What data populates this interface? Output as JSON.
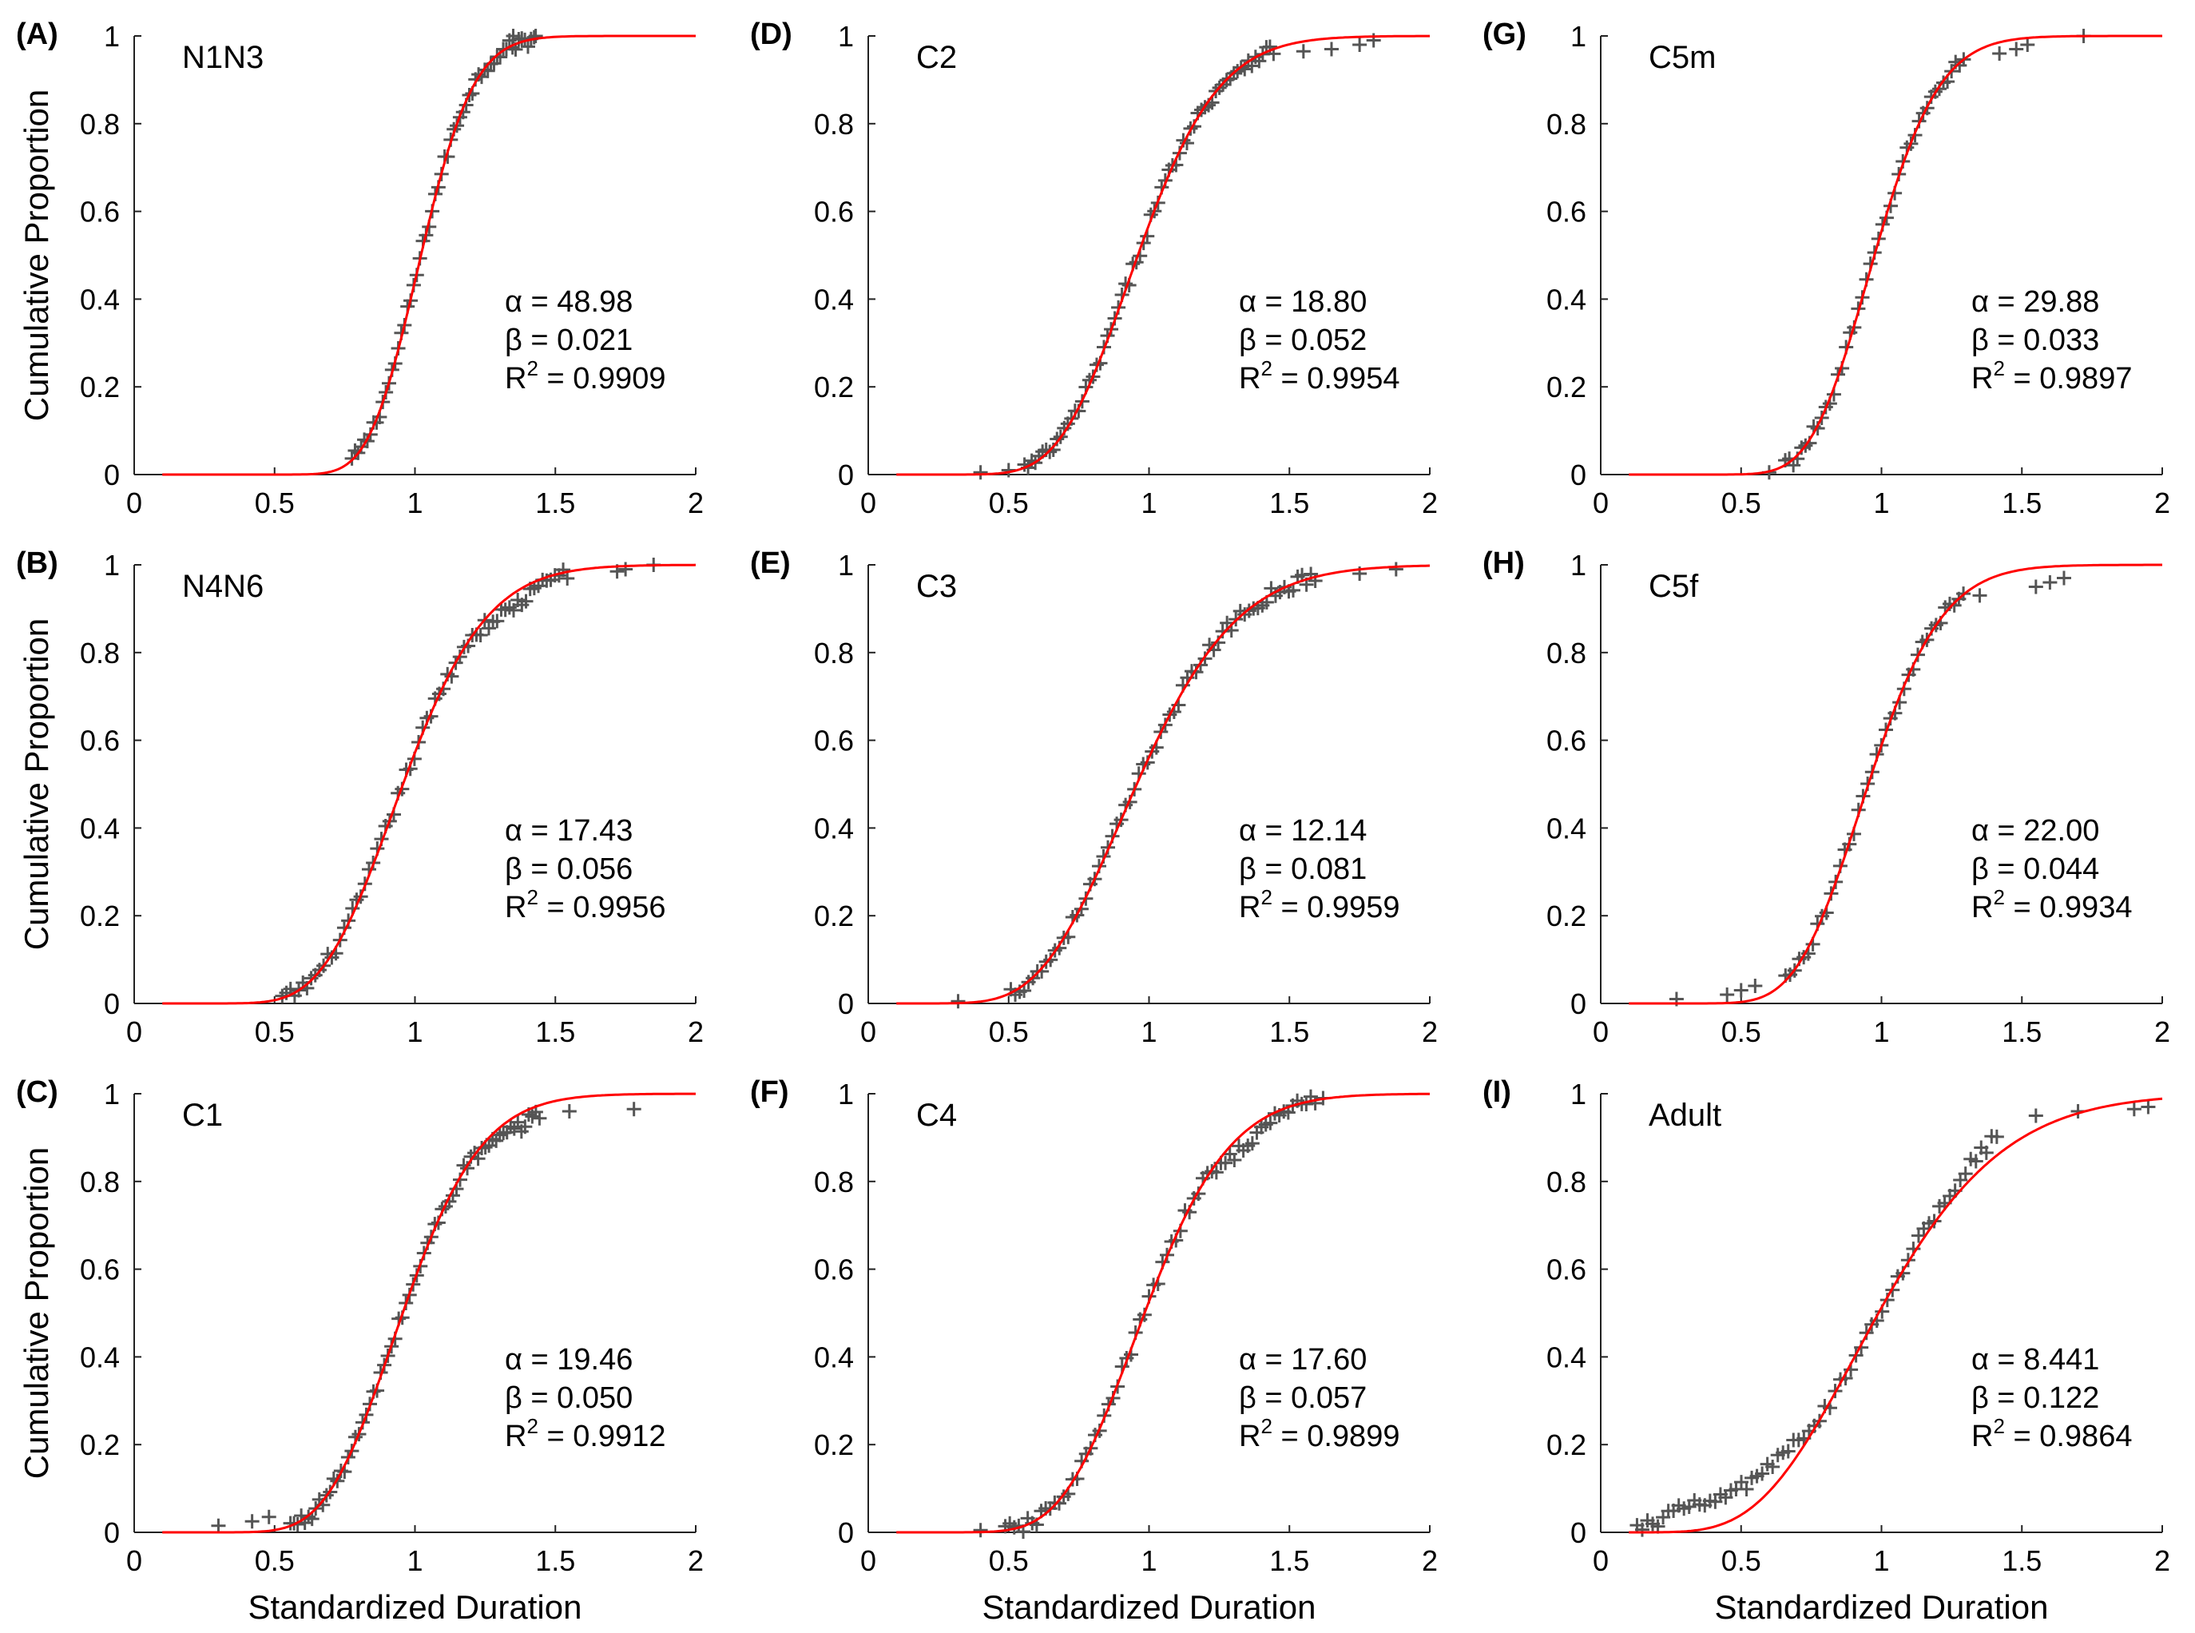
{
  "figure": {
    "xlabel": "Standardized Duration",
    "ylabel": "Cumulative Proportion",
    "x_ticks": [
      "0",
      "0.5",
      "1",
      "1.5",
      "2"
    ],
    "y_ticks": [
      "0",
      "0.2",
      "0.4",
      "0.6",
      "0.8",
      "1"
    ],
    "fit_color": "#ff0000",
    "data_color": "#555555"
  },
  "chart_data": [
    {
      "panel": "(A)",
      "title": "N1N3",
      "type": "scatter",
      "model": "gamma-cdf",
      "alpha": 48.98,
      "beta": 0.021,
      "alpha_text": "α = 48.98",
      "beta_text": "β = 0.021",
      "r2_text": "R2 = 0.9909",
      "r2_value": "= 0.9909",
      "xlim": [
        0,
        2
      ],
      "ylim": [
        0,
        1
      ],
      "xlabel": "",
      "ylabel": "Cumulative Proportion",
      "data_range": [
        0.77,
        1.43
      ],
      "n_points": 60,
      "deviation": "none",
      "outliers": [
        [
          1.35,
          1.0
        ],
        [
          1.43,
          1.0
        ]
      ]
    },
    {
      "panel": "(B)",
      "title": "N4N6",
      "type": "scatter",
      "model": "gamma-cdf",
      "alpha": 17.43,
      "beta": 0.056,
      "alpha_text": "α = 17.43",
      "beta_text": "β = 0.056",
      "r2_text": "R2 = 0.9956",
      "r2_value": "= 0.9956",
      "xlim": [
        0,
        2
      ],
      "ylim": [
        0,
        1
      ],
      "xlabel": "",
      "ylabel": "Cumulative Proportion",
      "data_range": [
        0.52,
        1.55
      ],
      "n_points": 70,
      "deviation": "lowtail",
      "outliers": [
        [
          1.72,
          0.985
        ],
        [
          1.75,
          0.99
        ],
        [
          1.85,
          1.0
        ]
      ]
    },
    {
      "panel": "(C)",
      "title": "C1",
      "type": "scatter",
      "model": "gamma-cdf",
      "alpha": 19.46,
      "beta": 0.05,
      "alpha_text": "α = 19.46",
      "beta_text": "β = 0.050",
      "r2_text": "R2 = 0.9912",
      "r2_value": "= 0.9912",
      "xlim": [
        0,
        2
      ],
      "ylim": [
        0,
        1
      ],
      "xlabel": "Standardized Duration",
      "ylabel": "Cumulative Proportion",
      "data_range": [
        0.55,
        1.45
      ],
      "n_points": 70,
      "deviation": "lowtail",
      "outliers": [
        [
          0.3,
          0.015
        ],
        [
          0.42,
          0.025
        ],
        [
          0.48,
          0.035
        ],
        [
          1.55,
          0.96
        ],
        [
          1.78,
          0.965
        ]
      ]
    },
    {
      "panel": "(D)",
      "title": "C2",
      "type": "scatter",
      "model": "gamma-cdf",
      "alpha": 18.8,
      "beta": 0.052,
      "alpha_text": "α = 18.80",
      "beta_text": "β = 0.052",
      "r2_text": "R2 = 0.9954",
      "r2_value": "= 0.9954",
      "xlim": [
        0,
        2
      ],
      "ylim": [
        0,
        1
      ],
      "xlabel": "",
      "ylabel": "",
      "data_range": [
        0.55,
        1.45
      ],
      "n_points": 70,
      "deviation": "none",
      "outliers": [
        [
          0.4,
          0.005
        ],
        [
          0.5,
          0.01
        ],
        [
          1.55,
          0.965
        ],
        [
          1.65,
          0.97
        ],
        [
          1.75,
          0.98
        ],
        [
          1.8,
          0.99
        ]
      ]
    },
    {
      "panel": "(E)",
      "title": "C3",
      "type": "scatter",
      "model": "gamma-cdf",
      "alpha": 12.14,
      "beta": 0.081,
      "alpha_text": "α = 12.14",
      "beta_text": "β = 0.081",
      "r2_text": "R2 = 0.9959",
      "r2_value": "= 0.9959",
      "xlim": [
        0,
        2
      ],
      "ylim": [
        0,
        1
      ],
      "xlabel": "",
      "ylabel": "",
      "data_range": [
        0.5,
        1.6
      ],
      "n_points": 70,
      "deviation": "none",
      "outliers": [
        [
          0.32,
          0.005
        ],
        [
          1.75,
          0.98
        ],
        [
          1.88,
          0.99
        ]
      ]
    },
    {
      "panel": "(F)",
      "title": "C4",
      "type": "scatter",
      "model": "gamma-cdf",
      "alpha": 17.6,
      "beta": 0.057,
      "alpha_text": "α = 17.60",
      "beta_text": "β = 0.057",
      "r2_text": "R2 = 0.9899",
      "r2_value": "= 0.9899",
      "xlim": [
        0,
        2
      ],
      "ylim": [
        0,
        1
      ],
      "xlabel": "Standardized Duration",
      "ylabel": "",
      "data_range": [
        0.48,
        1.6
      ],
      "n_points": 70,
      "deviation": "lowtail",
      "outliers": [
        [
          0.4,
          0.005
        ],
        [
          1.62,
          0.99
        ]
      ]
    },
    {
      "panel": "(G)",
      "title": "C5m",
      "type": "scatter",
      "model": "gamma-cdf",
      "alpha": 29.88,
      "beta": 0.033,
      "alpha_text": "α = 29.88",
      "beta_text": "β = 0.033",
      "r2_text": "R2 = 0.9897",
      "r2_value": "= 0.9897",
      "xlim": [
        0,
        2
      ],
      "ylim": [
        0,
        1
      ],
      "xlabel": "",
      "ylabel": "",
      "data_range": [
        0.65,
        1.3
      ],
      "n_points": 45,
      "deviation": "none",
      "outliers": [
        [
          0.6,
          0.005
        ],
        [
          1.42,
          0.96
        ],
        [
          1.48,
          0.97
        ],
        [
          1.52,
          0.98
        ],
        [
          1.72,
          1.0
        ]
      ]
    },
    {
      "panel": "(H)",
      "title": "C5f",
      "type": "scatter",
      "model": "gamma-cdf",
      "alpha": 22.0,
      "beta": 0.044,
      "alpha_text": "α = 22.00",
      "beta_text": "β = 0.044",
      "r2_text": "R2 = 0.9934",
      "r2_value": "= 0.9934",
      "xlim": [
        0,
        2
      ],
      "ylim": [
        0,
        1
      ],
      "xlabel": "",
      "ylabel": "",
      "data_range": [
        0.65,
        1.3
      ],
      "n_points": 40,
      "deviation": "none",
      "outliers": [
        [
          0.27,
          0.01
        ],
        [
          0.45,
          0.02
        ],
        [
          0.5,
          0.03
        ],
        [
          0.55,
          0.04
        ],
        [
          1.35,
          0.93
        ],
        [
          1.55,
          0.95
        ],
        [
          1.6,
          0.96
        ],
        [
          1.65,
          0.97
        ]
      ]
    },
    {
      "panel": "(I)",
      "title": "Adult",
      "type": "scatter",
      "model": "gamma-cdf",
      "alpha": 8.441,
      "beta": 0.122,
      "alpha_text": "α = 8.441",
      "beta_text": "β = 0.122",
      "r2_text": "R2 = 0.9864",
      "r2_value": "= 0.9864",
      "xlim": [
        0,
        2
      ],
      "ylim": [
        0,
        1
      ],
      "xlabel": "Standardized Duration",
      "ylabel": "",
      "data_range": [
        0.12,
        1.42
      ],
      "n_points": 70,
      "deviation": "adult",
      "outliers": [
        [
          1.55,
          0.95
        ],
        [
          1.7,
          0.96
        ],
        [
          1.9,
          0.965
        ],
        [
          1.95,
          0.97
        ]
      ]
    }
  ]
}
